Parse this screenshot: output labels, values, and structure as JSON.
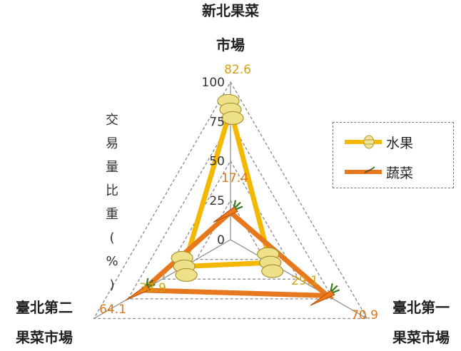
{
  "chart_data": {
    "type": "radar",
    "categories": [
      "新北果菜\n市場",
      "臺北第一\n果菜市場",
      "臺北第二\n果菜市場"
    ],
    "ylabel": "交易量比重(%)",
    "rlim": [
      0,
      100
    ],
    "ticks": [
      0,
      25,
      50,
      75,
      100
    ],
    "series": [
      {
        "name": "水果",
        "values": [
          82.6,
          29.1,
          33.9
        ],
        "labels": [
          "82.6",
          "29.1",
          "33.9"
        ],
        "color": "#f5b800"
      },
      {
        "name": "蔬菜",
        "values": [
          17.4,
          70.9,
          64.1
        ],
        "labels": [
          "17.4",
          "70.9",
          "64.1"
        ],
        "color": "#e8781e"
      }
    ],
    "legend": "right"
  }
}
